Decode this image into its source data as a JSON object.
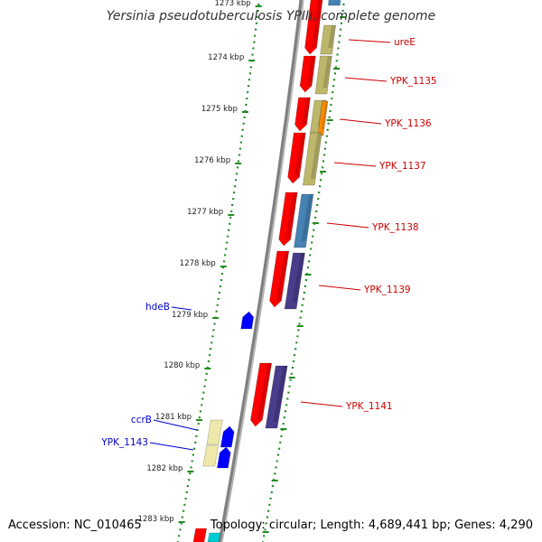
{
  "title": "Yersinia pseudotuberculosis YPIII, complete genome",
  "footer": {
    "accession": "Accession: NC_010465",
    "topology": "Topology: circular; Length: 4,689,441 bp; Genes: 4,290"
  },
  "ticks": [
    "1273 kbp",
    "1274 kbp",
    "1275 kbp",
    "1276 kbp",
    "1277 kbp",
    "1278 kbp",
    "1279 kbp",
    "1280 kbp",
    "1281 kbp",
    "1282 kbp",
    "1283 kbp"
  ],
  "genes_right": [
    {
      "name": "ureE",
      "color": "#cc0000"
    },
    {
      "name": "YPK_1135",
      "color": "#cc0000"
    },
    {
      "name": "YPK_1136",
      "color": "#cc0000"
    },
    {
      "name": "YPK_1137",
      "color": "#cc0000"
    },
    {
      "name": "YPK_1138",
      "color": "#cc0000"
    },
    {
      "name": "YPK_1139",
      "color": "#cc0000"
    },
    {
      "name": "YPK_1141",
      "color": "#cc0000"
    }
  ],
  "genes_left": [
    {
      "name": "hdeB",
      "color": "#0000cc"
    },
    {
      "name": "ccrB",
      "color": "#0000cc"
    },
    {
      "name": "YPK_1143",
      "color": "#0000cc"
    }
  ],
  "colors": {
    "backbone": "#808080",
    "tick_dots": "#228B22",
    "red_cds": "#ff0000",
    "khaki": "#bdb76b",
    "steelblue": "#4682b4",
    "darkslate": "#483d8b",
    "orange": "#ff8c00",
    "blue": "#0000ff",
    "paleyellow": "#eee8aa",
    "cyan": "#00ced1",
    "pink": "#ffb6c1"
  }
}
